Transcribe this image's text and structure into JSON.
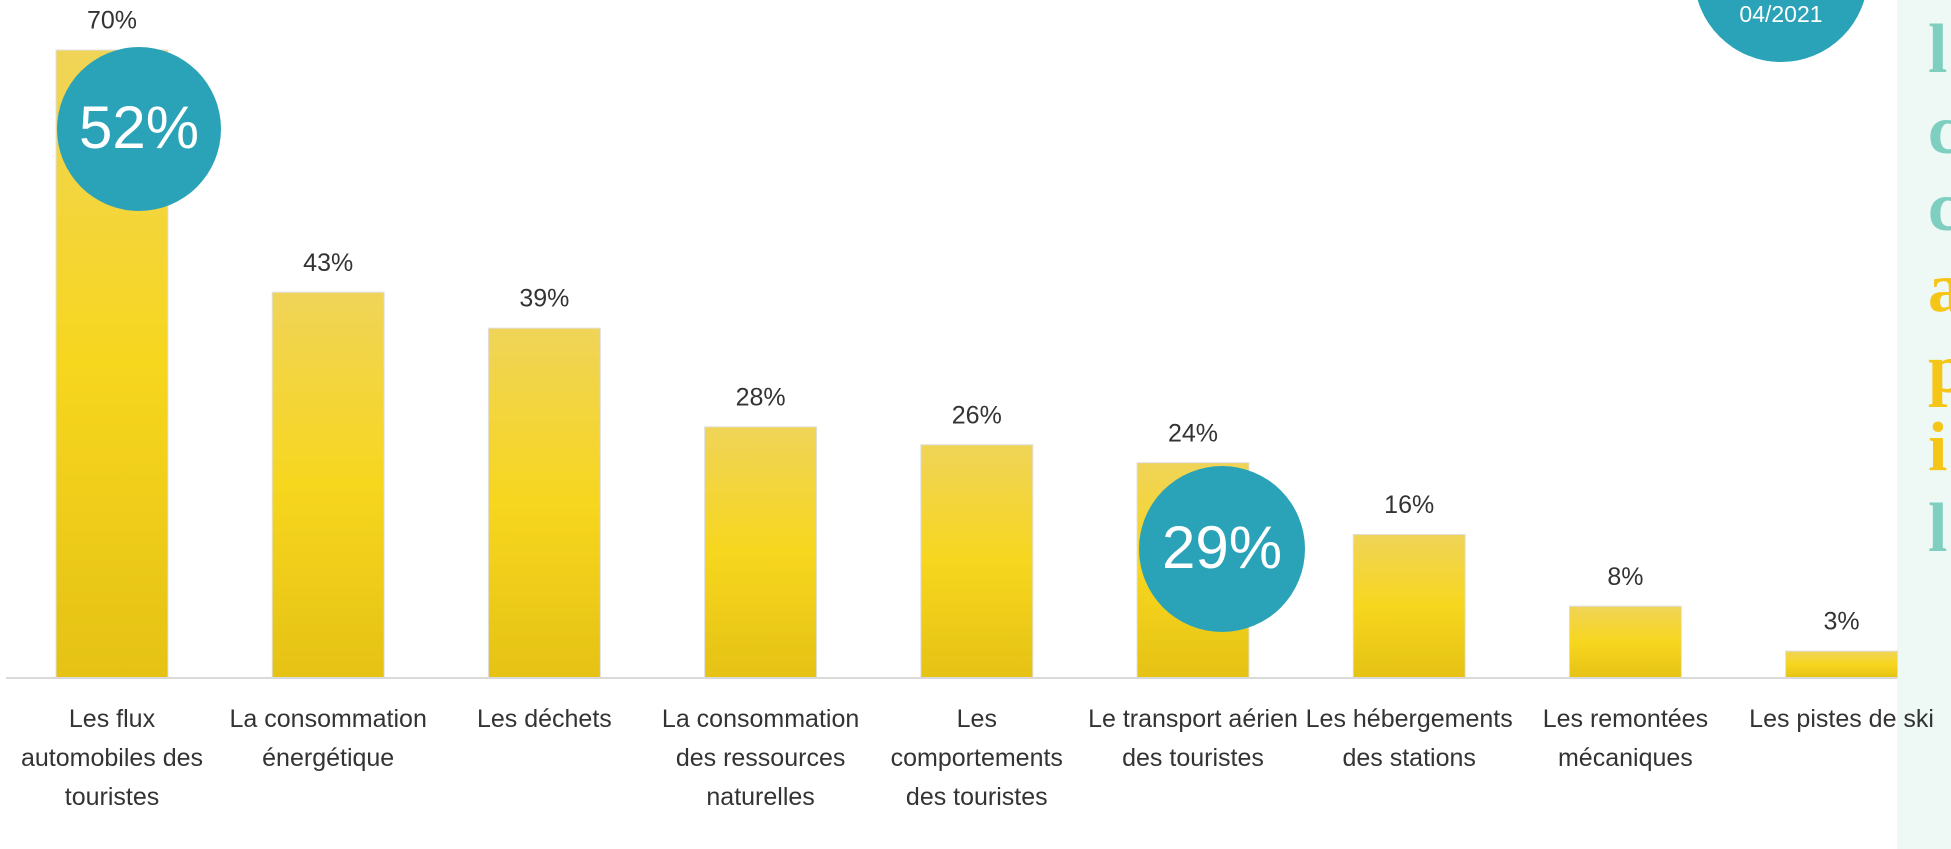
{
  "chart_data": {
    "type": "bar",
    "categories": [
      "Les flux automobiles des touristes",
      "La consommation énergétique",
      "Les déchets",
      "La consommation des ressources naturelles",
      "Les comportements des touristes",
      "Le transport aérien des touristes",
      "Les hébergements des stations",
      "Les remontées mécaniques",
      "Les pistes de ski"
    ],
    "values": [
      70,
      43,
      39,
      28,
      26,
      24,
      16,
      8,
      3
    ],
    "value_labels": [
      "70%",
      "43%",
      "39%",
      "28%",
      "26%",
      "24%",
      "16%",
      "8%",
      "3%"
    ],
    "color": "#f2d027",
    "ylim": [
      0,
      70
    ],
    "annotations": [
      "52%",
      "29%",
      "04/2021"
    ],
    "side_text": [
      {
        "text": "l",
        "color": "#7ecfc0"
      },
      {
        "text": "c",
        "color": "#7ecfc0"
      },
      {
        "text": "c",
        "color": "#7ecfc0"
      },
      {
        "text": "a",
        "color": "#f5c518"
      },
      {
        "text": "p",
        "color": "#f5c518"
      },
      {
        "text": "i",
        "color": "#f5c518"
      },
      {
        "text": "l",
        "color": "#7ecfc0"
      }
    ]
  }
}
